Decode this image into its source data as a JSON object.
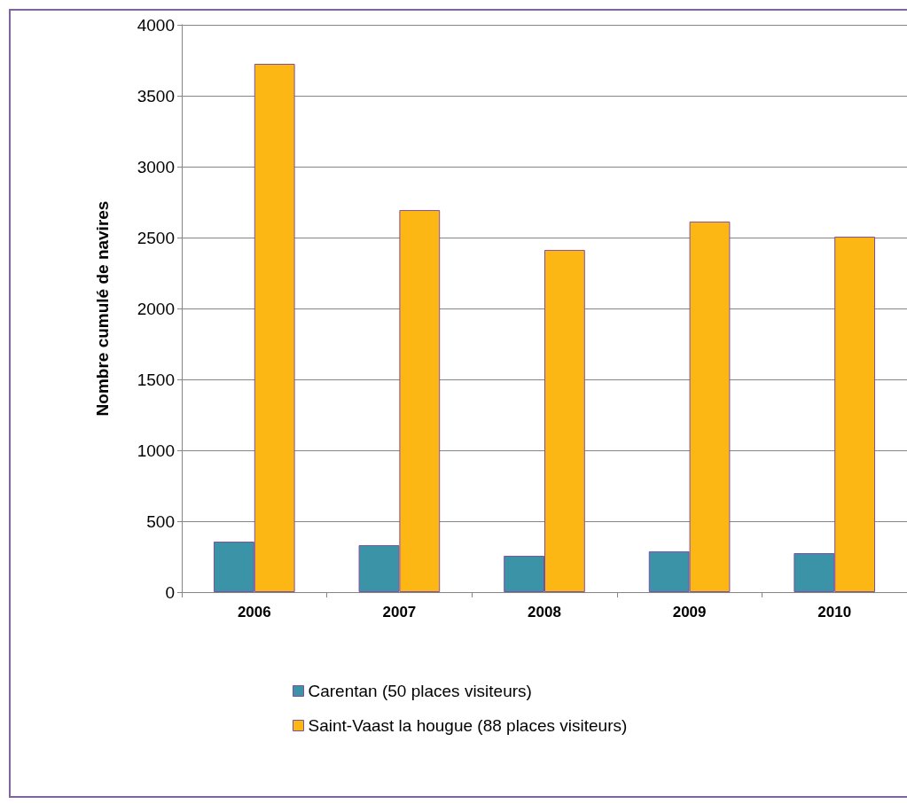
{
  "chart_data": {
    "type": "bar",
    "ylabel": "Nombre cumulé de navires",
    "categories": [
      "2006",
      "2007",
      "2008",
      "2009",
      "2010"
    ],
    "series": [
      {
        "name": "Carentan (50 places visiteurs)",
        "color": "#3b93a7",
        "values": [
          356,
          331,
          256,
          288,
          275
        ]
      },
      {
        "name": "Saint-Vaast la hougue (88 places visiteurs)",
        "color": "#fdb714",
        "values": [
          3725,
          2694,
          2413,
          2613,
          2506
        ]
      }
    ],
    "ylim": [
      0,
      4000
    ],
    "yticks": [
      0,
      500,
      1000,
      1500,
      2000,
      2500,
      3000,
      3500,
      4000
    ],
    "grid": "y",
    "legend": "bottom"
  }
}
